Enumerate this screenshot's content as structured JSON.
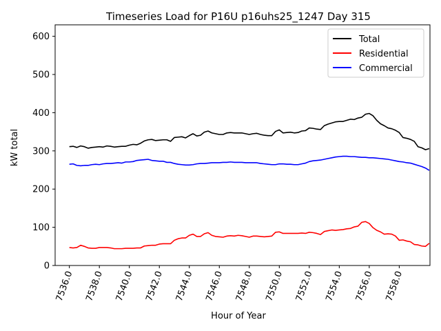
{
  "chart_data": {
    "type": "line",
    "title": "Timeseries Load for P16U p16uhs25_1247  Day 315",
    "xlabel": "Hour of Year",
    "ylabel": "kW total",
    "xlim": [
      7535.05,
      7560.05
    ],
    "ylim": [
      0,
      630
    ],
    "xticks": [
      7536,
      7538,
      7540,
      7542,
      7544,
      7546,
      7548,
      7550,
      7552,
      7554,
      7556,
      7558
    ],
    "xtick_labels": [
      "7536.0",
      "7538.0",
      "7540.0",
      "7542.0",
      "7544.0",
      "7546.0",
      "7548.0",
      "7550.0",
      "7552.0",
      "7554.0",
      "7556.0",
      "7558.0"
    ],
    "yticks": [
      0,
      100,
      200,
      300,
      400,
      500,
      600
    ],
    "ytick_labels": [
      "0",
      "100",
      "200",
      "300",
      "400",
      "500",
      "600"
    ],
    "x_start": 7536.0,
    "x_step": 0.25,
    "legend_position": "top-right",
    "series": [
      {
        "name": "Total",
        "color": "#000000",
        "values": [
          311,
          312,
          309,
          313,
          311,
          307,
          309,
          310,
          311,
          310,
          313,
          312,
          310,
          311,
          312,
          312,
          315,
          317,
          316,
          320,
          326,
          329,
          330,
          327,
          328,
          329,
          329,
          325,
          335,
          336,
          337,
          334,
          340,
          345,
          339,
          341,
          349,
          352,
          347,
          345,
          343,
          343,
          347,
          348,
          347,
          347,
          347,
          345,
          343,
          345,
          346,
          343,
          341,
          340,
          340,
          351,
          355,
          347,
          348,
          349,
          347,
          348,
          352,
          353,
          360,
          359,
          357,
          356,
          366,
          370,
          373,
          376,
          377,
          377,
          380,
          383,
          382,
          386,
          388,
          396,
          398,
          392,
          380,
          371,
          366,
          360,
          358,
          354,
          348,
          335,
          333,
          330,
          325,
          311,
          308,
          303,
          306
        ]
      },
      {
        "name": "Residential",
        "color": "#ff0000",
        "values": [
          47,
          46,
          47,
          53,
          50,
          46,
          45,
          45,
          47,
          47,
          47,
          46,
          44,
          44,
          44,
          45,
          45,
          45,
          46,
          46,
          51,
          52,
          53,
          53,
          56,
          57,
          57,
          57,
          66,
          70,
          72,
          72,
          79,
          82,
          76,
          76,
          83,
          86,
          79,
          76,
          75,
          74,
          77,
          78,
          77,
          79,
          78,
          76,
          74,
          77,
          77,
          76,
          75,
          76,
          77,
          87,
          88,
          84,
          84,
          84,
          84,
          84,
          85,
          84,
          87,
          86,
          84,
          81,
          89,
          91,
          93,
          92,
          93,
          94,
          96,
          97,
          101,
          103,
          113,
          115,
          110,
          99,
          92,
          88,
          82,
          83,
          82,
          77,
          66,
          67,
          64,
          62,
          55,
          54,
          51,
          50,
          58
        ]
      },
      {
        "name": "Commercial",
        "color": "#0000ff",
        "values": [
          265,
          266,
          262,
          261,
          262,
          262,
          264,
          265,
          264,
          266,
          267,
          267,
          268,
          269,
          268,
          271,
          271,
          272,
          275,
          276,
          277,
          278,
          275,
          274,
          273,
          273,
          270,
          270,
          267,
          265,
          264,
          263,
          263,
          264,
          266,
          267,
          267,
          268,
          269,
          269,
          269,
          270,
          270,
          271,
          270,
          270,
          270,
          269,
          269,
          269,
          269,
          267,
          266,
          265,
          264,
          264,
          266,
          266,
          265,
          265,
          264,
          264,
          266,
          268,
          272,
          274,
          275,
          276,
          278,
          280,
          282,
          284,
          285,
          286,
          286,
          285,
          285,
          284,
          283,
          283,
          282,
          282,
          281,
          280,
          279,
          278,
          276,
          274,
          272,
          271,
          269,
          268,
          265,
          262,
          259,
          255,
          249
        ]
      }
    ]
  }
}
